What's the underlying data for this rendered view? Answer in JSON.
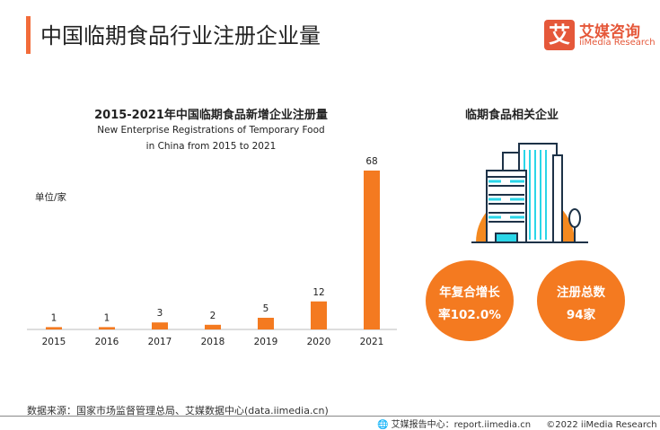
{
  "header": {
    "title": "中国临期食品行业注册企业量",
    "logo_mark": "艾",
    "logo_cn": "艾媒咨询",
    "logo_en": "iiMedia Research"
  },
  "chart_data": {
    "type": "bar",
    "title": "2015-2021年中国临期食品新增企业注册量",
    "subtitle_line1": "New Enterprise Registrations of Temporary Food",
    "subtitle_line2": "in China from 2015 to 2021",
    "unit": "单位/家",
    "categories": [
      "2015",
      "2016",
      "2017",
      "2018",
      "2019",
      "2020",
      "2021"
    ],
    "values": [
      1,
      1,
      3,
      2,
      5,
      12,
      68
    ],
    "color": "#f47a20",
    "grid": false
  },
  "right": {
    "title": "临期食品相关企业",
    "cagr_line1": "年复合增长",
    "cagr_line2": "率102.0%",
    "total_line1": "注册总数",
    "total_line2": "94家"
  },
  "footer": {
    "source": "数据来源：国家市场监督管理总局、艾媒数据中心(data.iimedia.cn)",
    "report": "艾媒报告中心：report.iimedia.cn",
    "copyright": "©2022  iiMedia Research  Inc"
  }
}
